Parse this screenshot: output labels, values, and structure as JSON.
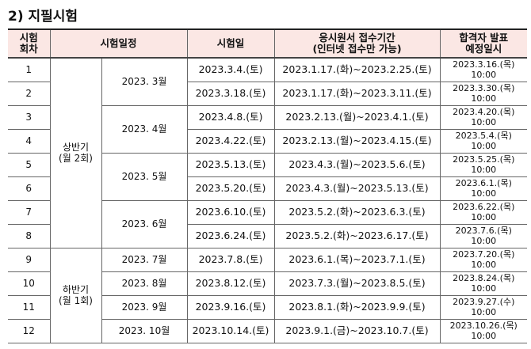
{
  "title": "2) 지필시험",
  "table": {
    "header": {
      "round": [
        "시험",
        "회차"
      ],
      "schedule": "시험일정",
      "exam_date": "시험일",
      "application": [
        "응시원서 접수기간",
        "(인터넷 접수만 가능)"
      ],
      "announcement": [
        "합격자 발표",
        "예정일시"
      ]
    },
    "halves": [
      {
        "label": [
          "상반기",
          "(월 2회)"
        ],
        "months": [
          {
            "label": "2023. 3월",
            "rows": [
              {
                "round": "1",
                "date": "2023.3.4.(토)",
                "period": "2023.1.17.(화)~2023.2.25.(토)",
                "announce": [
                  "2023.3.16.(목)",
                  "10:00"
                ]
              },
              {
                "round": "2",
                "date": "2023.3.18.(토)",
                "period": "2023.1.17.(화)~2023.3.11.(토)",
                "announce": [
                  "2023.3.30.(목)",
                  "10:00"
                ]
              }
            ]
          },
          {
            "label": "2023. 4월",
            "rows": [
              {
                "round": "3",
                "date": "2023.4.8.(토)",
                "period": "2023.2.13.(월)~2023.4.1.(토)",
                "announce": [
                  "2023.4.20.(목)",
                  "10:00"
                ]
              },
              {
                "round": "4",
                "date": "2023.4.22.(토)",
                "period": "2023.2.13.(월)~2023.4.15.(토)",
                "announce": [
                  "2023.5.4.(목)",
                  "10:00"
                ]
              }
            ]
          },
          {
            "label": "2023. 5월",
            "rows": [
              {
                "round": "5",
                "date": "2023.5.13.(토)",
                "period": "2023.4.3.(월)~2023.5.6.(토)",
                "announce": [
                  "2023.5.25.(목)",
                  "10:00"
                ]
              },
              {
                "round": "6",
                "date": "2023.5.20.(토)",
                "period": "2023.4.3.(월)~2023.5.13.(토)",
                "announce": [
                  "2023.6.1.(목)",
                  "10:00"
                ]
              }
            ]
          },
          {
            "label": "2023. 6월",
            "rows": [
              {
                "round": "7",
                "date": "2023.6.10.(토)",
                "period": "2023.5.2.(화)~2023.6.3.(토)",
                "announce": [
                  "2023.6.22.(목)",
                  "10:00"
                ]
              },
              {
                "round": "8",
                "date": "2023.6.24.(토)",
                "period": "2023.5.2.(화)~2023.6.17.(토)",
                "announce": [
                  "2023.7.6.(목)",
                  "10:00"
                ]
              }
            ]
          }
        ]
      },
      {
        "label": [
          "하반기",
          "(월 1회)"
        ],
        "months": [
          {
            "label": "2023. 7월",
            "rows": [
              {
                "round": "9",
                "date": "2023.7.8.(토)",
                "period": "2023.6.1.(목)~2023.7.1.(토)",
                "announce": [
                  "2023.7.20.(목)",
                  "10:00"
                ]
              }
            ]
          },
          {
            "label": "2023. 8월",
            "rows": [
              {
                "round": "10",
                "date": "2023.8.12.(토)",
                "period": "2023.7.3.(월)~2023.8.5.(토)",
                "announce": [
                  "2023.8.24.(목)",
                  "10:00"
                ]
              }
            ]
          },
          {
            "label": "2023. 9월",
            "rows": [
              {
                "round": "11",
                "date": "2023.9.16.(토)",
                "period": "2023.8.1.(화)~2023.9.9.(토)",
                "announce": [
                  "2023.9.27.(수)",
                  "10:00"
                ]
              }
            ]
          },
          {
            "label": "2023. 10월",
            "rows": [
              {
                "round": "12",
                "date": "2023.10.14.(토)",
                "period": "2023.9.1.(금)~2023.10.7.(토)",
                "announce": [
                  "2023.10.26.(목)",
                  "10:00"
                ]
              }
            ]
          }
        ]
      }
    ]
  }
}
